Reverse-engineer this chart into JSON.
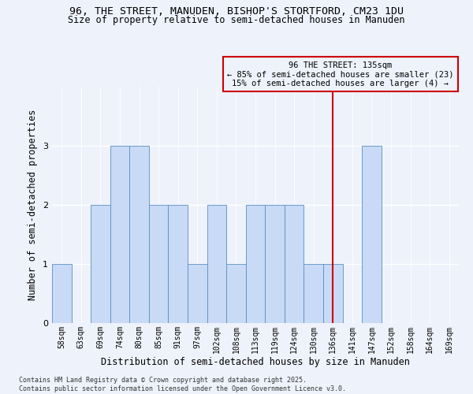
{
  "title_line1": "96, THE STREET, MANUDEN, BISHOP'S STORTFORD, CM23 1DU",
  "title_line2": "Size of property relative to semi-detached houses in Manuden",
  "xlabel": "Distribution of semi-detached houses by size in Manuden",
  "ylabel": "Number of semi-detached properties",
  "categories": [
    "58sqm",
    "63sqm",
    "69sqm",
    "74sqm",
    "80sqm",
    "85sqm",
    "91sqm",
    "97sqm",
    "102sqm",
    "108sqm",
    "113sqm",
    "119sqm",
    "124sqm",
    "130sqm",
    "136sqm",
    "141sqm",
    "147sqm",
    "152sqm",
    "158sqm",
    "164sqm",
    "169sqm"
  ],
  "values": [
    1,
    0,
    2,
    3,
    3,
    2,
    2,
    1,
    2,
    1,
    2,
    2,
    2,
    1,
    1,
    0,
    3,
    0,
    0,
    0,
    0
  ],
  "bar_color": "#c8daf5",
  "bar_edge_color": "#5a8fc3",
  "vline_x_index": 14,
  "vline_color": "#cc0000",
  "annotation_title": "96 THE STREET: 135sqm",
  "annotation_line2": "← 85% of semi-detached houses are smaller (23)",
  "annotation_line3": "15% of semi-detached houses are larger (4) →",
  "ylim": [
    0,
    4
  ],
  "yticks": [
    0,
    1,
    2,
    3
  ],
  "footnote_line1": "Contains HM Land Registry data © Crown copyright and database right 2025.",
  "footnote_line2": "Contains public sector information licensed under the Open Government Licence v3.0.",
  "background_color": "#eef2fb",
  "grid_color": "#ffffff",
  "title_fontsize": 9.5,
  "subtitle_fontsize": 8.5,
  "axis_label_fontsize": 8.5,
  "tick_fontsize": 7,
  "footnote_fontsize": 6
}
